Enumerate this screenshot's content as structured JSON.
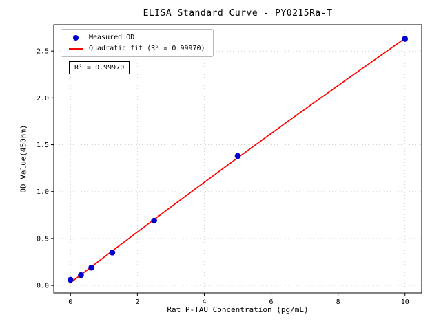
{
  "chart_data": {
    "type": "scatter",
    "title": "ELISA Standard Curve - PY0215Ra-T",
    "xlabel": "Rat P-TAU Concentration (pg/mL)",
    "ylabel": "OD Value(450nm)",
    "xlim": [
      -0.5,
      10.5
    ],
    "ylim": [
      -0.08,
      2.78
    ],
    "xticks": [
      0,
      2,
      4,
      6,
      8,
      10
    ],
    "yticks": [
      0,
      0.5,
      1,
      1.5,
      2,
      2.5
    ],
    "grid": true,
    "colors": {
      "axis": "#000000",
      "grid": "#c9c9c9",
      "background": "#ffffff"
    },
    "legend": {
      "position": "upper-left",
      "entries": [
        {
          "label": "Measured OD",
          "marker": "dot",
          "color": "#0000cd"
        },
        {
          "label": "Quadratic fit (R² = 0.99970)",
          "marker": "line",
          "color": "#ff0000"
        }
      ]
    },
    "annotation": "R² = 0.99970",
    "series": [
      {
        "name": "Measured OD",
        "type": "scatter",
        "color": "#0000cd",
        "x": [
          0,
          0.3125,
          0.625,
          1.25,
          2.5,
          5,
          10
        ],
        "y": [
          0.06,
          0.11,
          0.19,
          0.35,
          0.69,
          1.38,
          2.63
        ]
      },
      {
        "name": "Quadratic fit",
        "type": "line",
        "color": "#ff0000",
        "fit": "quadratic",
        "coeffs": [
          -0.00119,
          0.27237,
          0.02871
        ],
        "r_squared": 0.9997,
        "x_range": [
          0,
          10
        ]
      }
    ]
  }
}
